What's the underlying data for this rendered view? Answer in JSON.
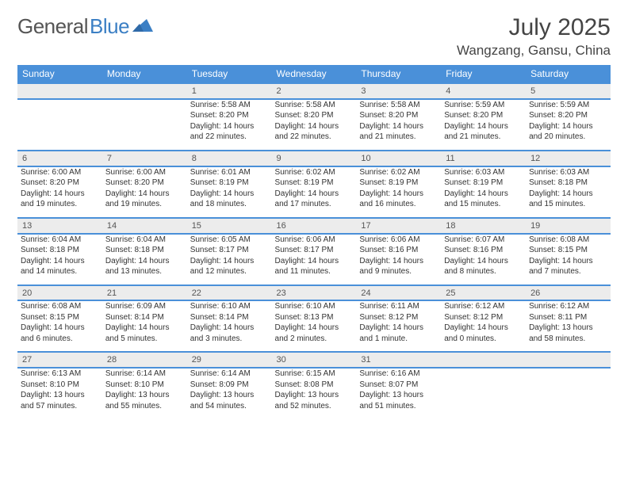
{
  "brand": {
    "name_part1": "General",
    "name_part2": "Blue"
  },
  "title": {
    "month": "July 2025",
    "location": "Wangzang, Gansu, China"
  },
  "colors": {
    "header_bg": "#4a90d9",
    "header_text": "#ffffff",
    "daynum_bg": "#ececec",
    "rule": "#4a90d9",
    "text": "#333333"
  },
  "weekdays": [
    "Sunday",
    "Monday",
    "Tuesday",
    "Wednesday",
    "Thursday",
    "Friday",
    "Saturday"
  ],
  "weeks": [
    {
      "days": [
        null,
        null,
        {
          "n": "1",
          "sunrise": "Sunrise: 5:58 AM",
          "sunset": "Sunset: 8:20 PM",
          "day1": "Daylight: 14 hours",
          "day2": "and 22 minutes."
        },
        {
          "n": "2",
          "sunrise": "Sunrise: 5:58 AM",
          "sunset": "Sunset: 8:20 PM",
          "day1": "Daylight: 14 hours",
          "day2": "and 22 minutes."
        },
        {
          "n": "3",
          "sunrise": "Sunrise: 5:58 AM",
          "sunset": "Sunset: 8:20 PM",
          "day1": "Daylight: 14 hours",
          "day2": "and 21 minutes."
        },
        {
          "n": "4",
          "sunrise": "Sunrise: 5:59 AM",
          "sunset": "Sunset: 8:20 PM",
          "day1": "Daylight: 14 hours",
          "day2": "and 21 minutes."
        },
        {
          "n": "5",
          "sunrise": "Sunrise: 5:59 AM",
          "sunset": "Sunset: 8:20 PM",
          "day1": "Daylight: 14 hours",
          "day2": "and 20 minutes."
        }
      ]
    },
    {
      "days": [
        {
          "n": "6",
          "sunrise": "Sunrise: 6:00 AM",
          "sunset": "Sunset: 8:20 PM",
          "day1": "Daylight: 14 hours",
          "day2": "and 19 minutes."
        },
        {
          "n": "7",
          "sunrise": "Sunrise: 6:00 AM",
          "sunset": "Sunset: 8:20 PM",
          "day1": "Daylight: 14 hours",
          "day2": "and 19 minutes."
        },
        {
          "n": "8",
          "sunrise": "Sunrise: 6:01 AM",
          "sunset": "Sunset: 8:19 PM",
          "day1": "Daylight: 14 hours",
          "day2": "and 18 minutes."
        },
        {
          "n": "9",
          "sunrise": "Sunrise: 6:02 AM",
          "sunset": "Sunset: 8:19 PM",
          "day1": "Daylight: 14 hours",
          "day2": "and 17 minutes."
        },
        {
          "n": "10",
          "sunrise": "Sunrise: 6:02 AM",
          "sunset": "Sunset: 8:19 PM",
          "day1": "Daylight: 14 hours",
          "day2": "and 16 minutes."
        },
        {
          "n": "11",
          "sunrise": "Sunrise: 6:03 AM",
          "sunset": "Sunset: 8:19 PM",
          "day1": "Daylight: 14 hours",
          "day2": "and 15 minutes."
        },
        {
          "n": "12",
          "sunrise": "Sunrise: 6:03 AM",
          "sunset": "Sunset: 8:18 PM",
          "day1": "Daylight: 14 hours",
          "day2": "and 15 minutes."
        }
      ]
    },
    {
      "days": [
        {
          "n": "13",
          "sunrise": "Sunrise: 6:04 AM",
          "sunset": "Sunset: 8:18 PM",
          "day1": "Daylight: 14 hours",
          "day2": "and 14 minutes."
        },
        {
          "n": "14",
          "sunrise": "Sunrise: 6:04 AM",
          "sunset": "Sunset: 8:18 PM",
          "day1": "Daylight: 14 hours",
          "day2": "and 13 minutes."
        },
        {
          "n": "15",
          "sunrise": "Sunrise: 6:05 AM",
          "sunset": "Sunset: 8:17 PM",
          "day1": "Daylight: 14 hours",
          "day2": "and 12 minutes."
        },
        {
          "n": "16",
          "sunrise": "Sunrise: 6:06 AM",
          "sunset": "Sunset: 8:17 PM",
          "day1": "Daylight: 14 hours",
          "day2": "and 11 minutes."
        },
        {
          "n": "17",
          "sunrise": "Sunrise: 6:06 AM",
          "sunset": "Sunset: 8:16 PM",
          "day1": "Daylight: 14 hours",
          "day2": "and 9 minutes."
        },
        {
          "n": "18",
          "sunrise": "Sunrise: 6:07 AM",
          "sunset": "Sunset: 8:16 PM",
          "day1": "Daylight: 14 hours",
          "day2": "and 8 minutes."
        },
        {
          "n": "19",
          "sunrise": "Sunrise: 6:08 AM",
          "sunset": "Sunset: 8:15 PM",
          "day1": "Daylight: 14 hours",
          "day2": "and 7 minutes."
        }
      ]
    },
    {
      "days": [
        {
          "n": "20",
          "sunrise": "Sunrise: 6:08 AM",
          "sunset": "Sunset: 8:15 PM",
          "day1": "Daylight: 14 hours",
          "day2": "and 6 minutes."
        },
        {
          "n": "21",
          "sunrise": "Sunrise: 6:09 AM",
          "sunset": "Sunset: 8:14 PM",
          "day1": "Daylight: 14 hours",
          "day2": "and 5 minutes."
        },
        {
          "n": "22",
          "sunrise": "Sunrise: 6:10 AM",
          "sunset": "Sunset: 8:14 PM",
          "day1": "Daylight: 14 hours",
          "day2": "and 3 minutes."
        },
        {
          "n": "23",
          "sunrise": "Sunrise: 6:10 AM",
          "sunset": "Sunset: 8:13 PM",
          "day1": "Daylight: 14 hours",
          "day2": "and 2 minutes."
        },
        {
          "n": "24",
          "sunrise": "Sunrise: 6:11 AM",
          "sunset": "Sunset: 8:12 PM",
          "day1": "Daylight: 14 hours",
          "day2": "and 1 minute."
        },
        {
          "n": "25",
          "sunrise": "Sunrise: 6:12 AM",
          "sunset": "Sunset: 8:12 PM",
          "day1": "Daylight: 14 hours",
          "day2": "and 0 minutes."
        },
        {
          "n": "26",
          "sunrise": "Sunrise: 6:12 AM",
          "sunset": "Sunset: 8:11 PM",
          "day1": "Daylight: 13 hours",
          "day2": "and 58 minutes."
        }
      ]
    },
    {
      "days": [
        {
          "n": "27",
          "sunrise": "Sunrise: 6:13 AM",
          "sunset": "Sunset: 8:10 PM",
          "day1": "Daylight: 13 hours",
          "day2": "and 57 minutes."
        },
        {
          "n": "28",
          "sunrise": "Sunrise: 6:14 AM",
          "sunset": "Sunset: 8:10 PM",
          "day1": "Daylight: 13 hours",
          "day2": "and 55 minutes."
        },
        {
          "n": "29",
          "sunrise": "Sunrise: 6:14 AM",
          "sunset": "Sunset: 8:09 PM",
          "day1": "Daylight: 13 hours",
          "day2": "and 54 minutes."
        },
        {
          "n": "30",
          "sunrise": "Sunrise: 6:15 AM",
          "sunset": "Sunset: 8:08 PM",
          "day1": "Daylight: 13 hours",
          "day2": "and 52 minutes."
        },
        {
          "n": "31",
          "sunrise": "Sunrise: 6:16 AM",
          "sunset": "Sunset: 8:07 PM",
          "day1": "Daylight: 13 hours",
          "day2": "and 51 minutes."
        },
        null,
        null
      ]
    }
  ]
}
